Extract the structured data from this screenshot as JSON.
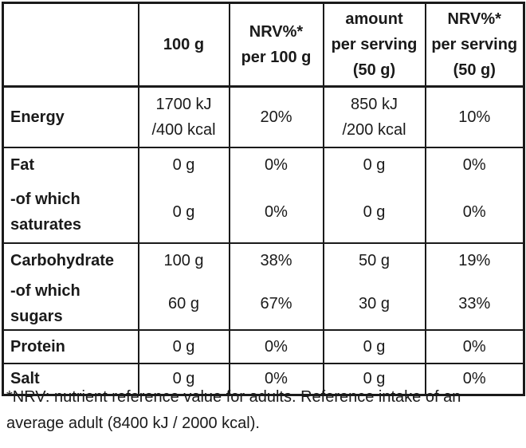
{
  "header": {
    "col1": "100 g",
    "col2_line1": "NRV%*",
    "col2_line2": "per 100 g",
    "col3_line1": "amount",
    "col3_line2": "per serving",
    "col3_line3": "(50 g)",
    "col4_line1": "NRV%*",
    "col4_line2": "per serving",
    "col4_line3": "(50 g)"
  },
  "rows": [
    {
      "label": "Energy",
      "v100_line1": "1700 kJ",
      "v100_line2": "/400 kcal",
      "nrv100": "20%",
      "serv_line1": "850 kJ",
      "serv_line2": "/200 kcal",
      "nrvserv": "10%"
    },
    {
      "label": "Fat",
      "v100": "0 g",
      "nrv100": "0%",
      "serv": "0 g",
      "nrvserv": "0%"
    },
    {
      "label_line1": "-of which",
      "label_line2": "saturates",
      "v100": "0 g",
      "nrv100": "0%",
      "serv": "0 g",
      "nrvserv": "0%"
    },
    {
      "label": "Carbohydrate",
      "v100": "100 g",
      "nrv100": "38%",
      "serv": "50 g",
      "nrvserv": "19%"
    },
    {
      "label": "-of which sugars",
      "v100": "60 g",
      "nrv100": "67%",
      "serv": "30 g",
      "nrvserv": "33%"
    },
    {
      "label": "Protein",
      "v100": "0 g",
      "nrv100": "0%",
      "serv": "0 g",
      "nrvserv": "0%"
    },
    {
      "label": "Salt",
      "v100": "0 g",
      "nrv100": "0%",
      "serv": "0 g",
      "nrvserv": "0%"
    }
  ],
  "footnote": {
    "line1": "*NRV: nutrient reference value for adults. Reference intake of an",
    "line2": "average adult (8400 kJ / 2000 kcal)."
  }
}
